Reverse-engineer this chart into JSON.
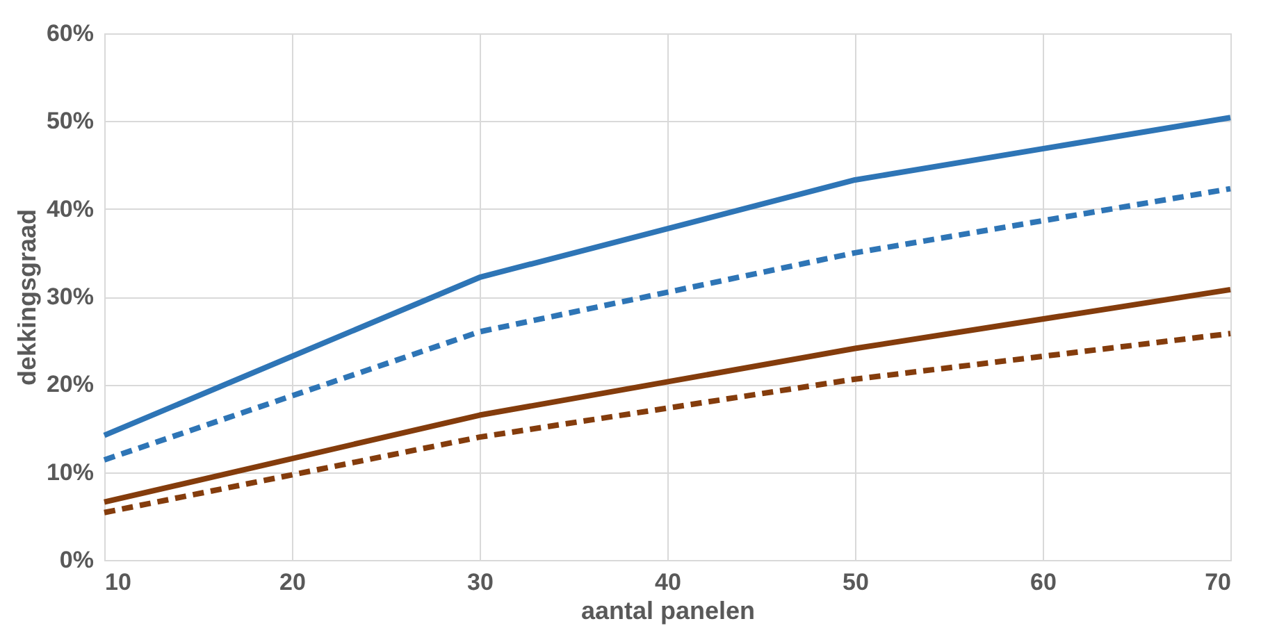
{
  "chart_data": {
    "type": "line",
    "xlabel": "aantal panelen",
    "ylabel": "dekkingsgraad",
    "xlim": [
      10,
      70
    ],
    "xticks": [
      10,
      20,
      30,
      40,
      50,
      60,
      70
    ],
    "ylim": [
      0,
      60
    ],
    "yticks": [
      {
        "value": 0,
        "label": "0%"
      },
      {
        "value": 10,
        "label": "10%"
      },
      {
        "value": 20,
        "label": "20%"
      },
      {
        "value": 30,
        "label": "30%"
      },
      {
        "value": 40,
        "label": "40%"
      },
      {
        "value": 50,
        "label": "50%"
      },
      {
        "value": 60,
        "label": "60%"
      }
    ],
    "grid": true,
    "legend": false,
    "marker": "none",
    "series": [
      {
        "color": "#2e75b6",
        "line_style": "solid",
        "x": [
          10,
          30,
          50,
          70
        ],
        "values": [
          14.2,
          32.2,
          43.3,
          50.4
        ]
      },
      {
        "color": "#2e75b6",
        "line_style": "dashed",
        "x": [
          10,
          30,
          50,
          70
        ],
        "values": [
          11.4,
          26.0,
          35.0,
          42.3
        ]
      },
      {
        "color": "#843c0c",
        "line_style": "solid",
        "x": [
          10,
          30,
          50,
          70
        ],
        "values": [
          6.6,
          16.5,
          24.1,
          30.8
        ]
      },
      {
        "color": "#843c0c",
        "line_style": "dashed",
        "x": [
          10,
          30,
          50,
          70
        ],
        "values": [
          5.4,
          14.0,
          20.6,
          25.8
        ]
      }
    ]
  }
}
